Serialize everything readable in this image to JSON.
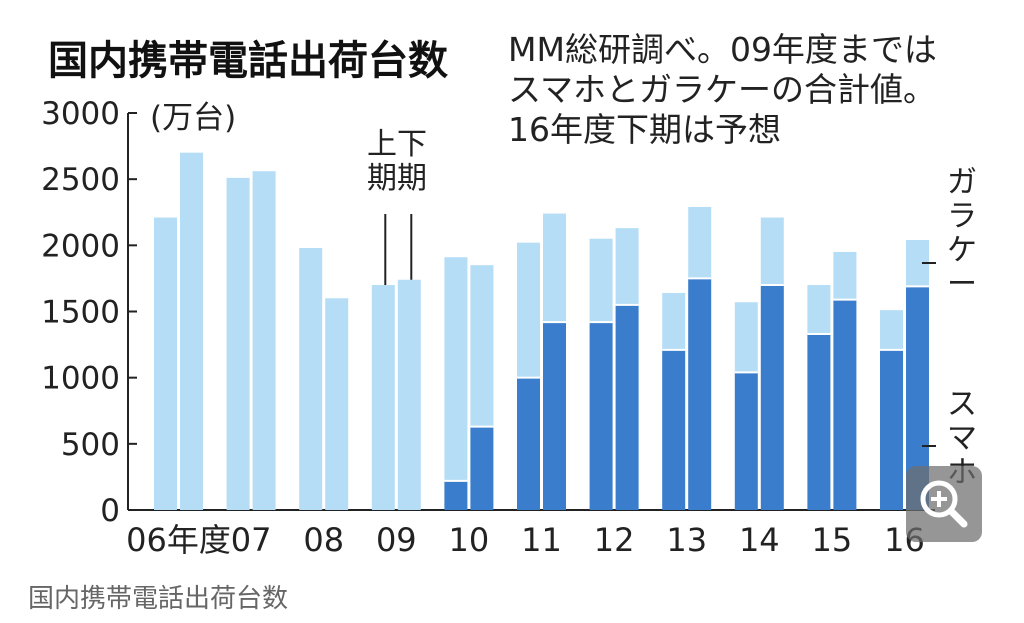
{
  "title": "国内携帯電話出荷台数",
  "note_lines": [
    "MM総研調べ。09年度までは",
    "スマホとガラケーの合計値。",
    "16年度下期は予想"
  ],
  "unit_label": "(万台)",
  "first_half_label": "上期",
  "second_half_label": "下期",
  "legend": {
    "feature_phone": "ガラケー",
    "smartphone": "スマホ"
  },
  "caption": "国内携帯電話出荷台数",
  "zoom_icon": "zoom-in-icon",
  "colors": {
    "light": "#b5ddf5",
    "dark": "#3a7dcc",
    "axis": "#222222",
    "divider": "#ffffff"
  },
  "chart_data": {
    "type": "bar",
    "stacked": true,
    "title": "国内携帯電話出荷台数",
    "ylabel": "(万台)",
    "ylim": [
      0,
      3000
    ],
    "yticks": [
      0,
      500,
      1000,
      1500,
      2000,
      2500,
      3000
    ],
    "categories": [
      "06年度",
      "07",
      "08",
      "09",
      "10",
      "11",
      "12",
      "13",
      "14",
      "15",
      "16"
    ],
    "periods": [
      "上期",
      "下期"
    ],
    "series": [
      {
        "name": "スマホ",
        "key": "smartphone",
        "values": [
          [
            null,
            null
          ],
          [
            null,
            null
          ],
          [
            null,
            null
          ],
          [
            null,
            null
          ],
          [
            220,
            630
          ],
          [
            1000,
            1420
          ],
          [
            1420,
            1550
          ],
          [
            1210,
            1750
          ],
          [
            1040,
            1700
          ],
          [
            1330,
            1590
          ],
          [
            1210,
            1690
          ]
        ]
      },
      {
        "name": "ガラケー",
        "key": "feature_phone",
        "values": [
          [
            null,
            null
          ],
          [
            null,
            null
          ],
          [
            null,
            null
          ],
          [
            null,
            null
          ],
          [
            1690,
            1220
          ],
          [
            1020,
            820
          ],
          [
            630,
            580
          ],
          [
            430,
            540
          ],
          [
            530,
            510
          ],
          [
            370,
            360
          ],
          [
            300,
            350
          ]
        ]
      },
      {
        "name": "合計",
        "key": "total_only",
        "values": [
          [
            2210,
            2700
          ],
          [
            2510,
            2560
          ],
          [
            1980,
            1600
          ],
          [
            1700,
            1740
          ],
          [
            null,
            null
          ],
          [
            null,
            null
          ],
          [
            null,
            null
          ],
          [
            null,
            null
          ],
          [
            null,
            null
          ],
          [
            null,
            null
          ],
          [
            null,
            null
          ]
        ]
      }
    ]
  }
}
